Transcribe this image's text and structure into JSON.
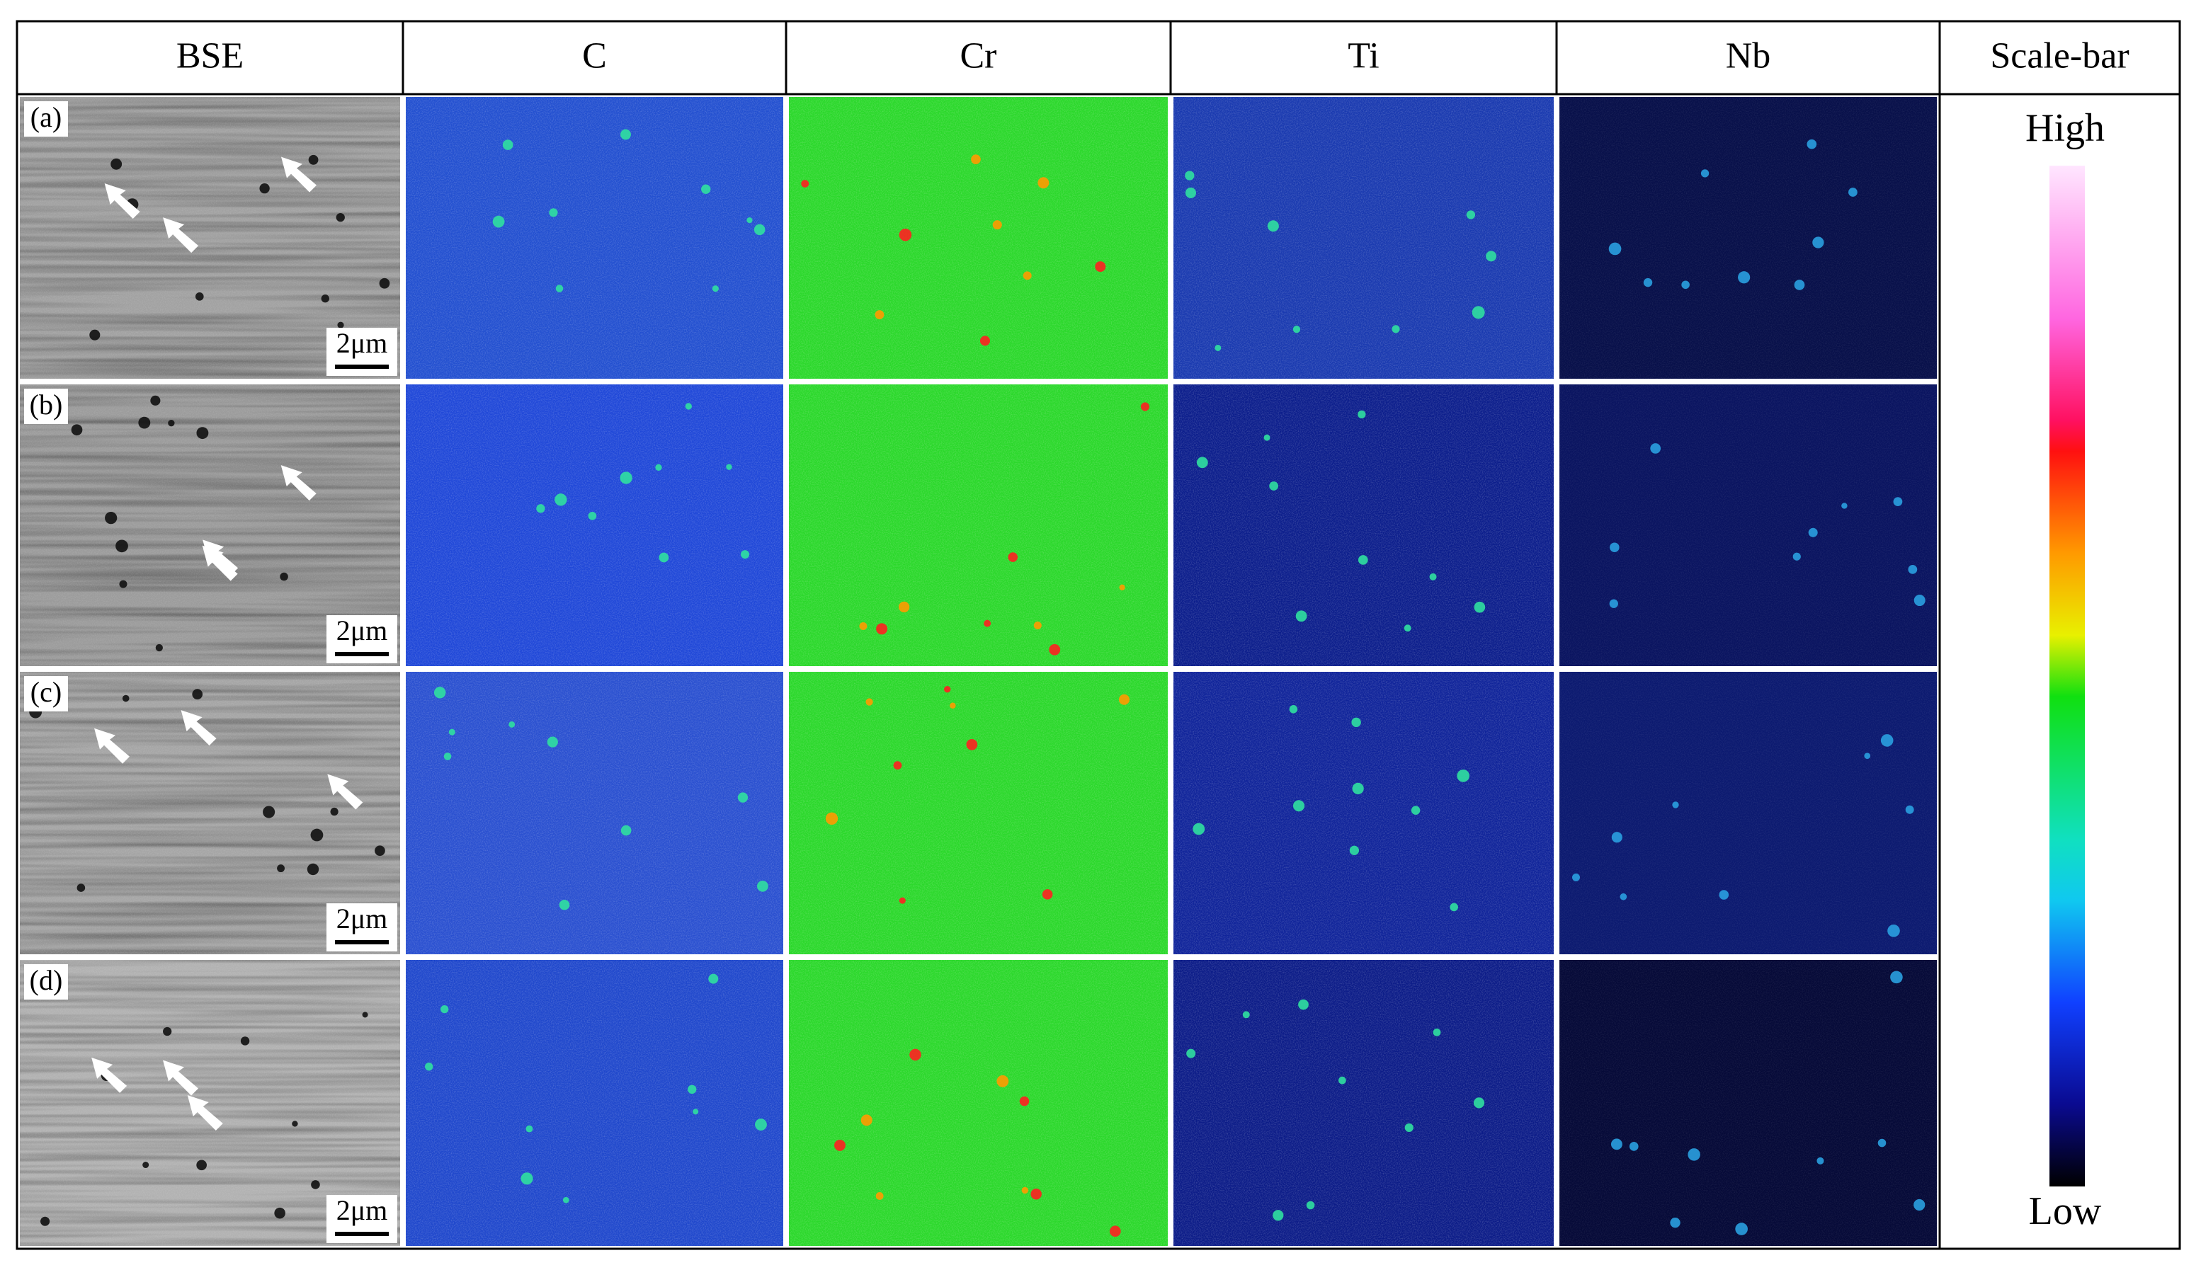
{
  "header": [
    "BSE",
    "C",
    "Cr",
    "Ti",
    "Nb",
    "Scale-bar"
  ],
  "rows": [
    {
      "label": "(a)",
      "scale": "2μm"
    },
    {
      "label": "(b)",
      "scale": "2μm"
    },
    {
      "label": "(c)",
      "scale": "2μm"
    },
    {
      "label": "(d)",
      "scale": "2μm"
    }
  ],
  "colorbar": {
    "high": "High",
    "low": "Low"
  }
}
